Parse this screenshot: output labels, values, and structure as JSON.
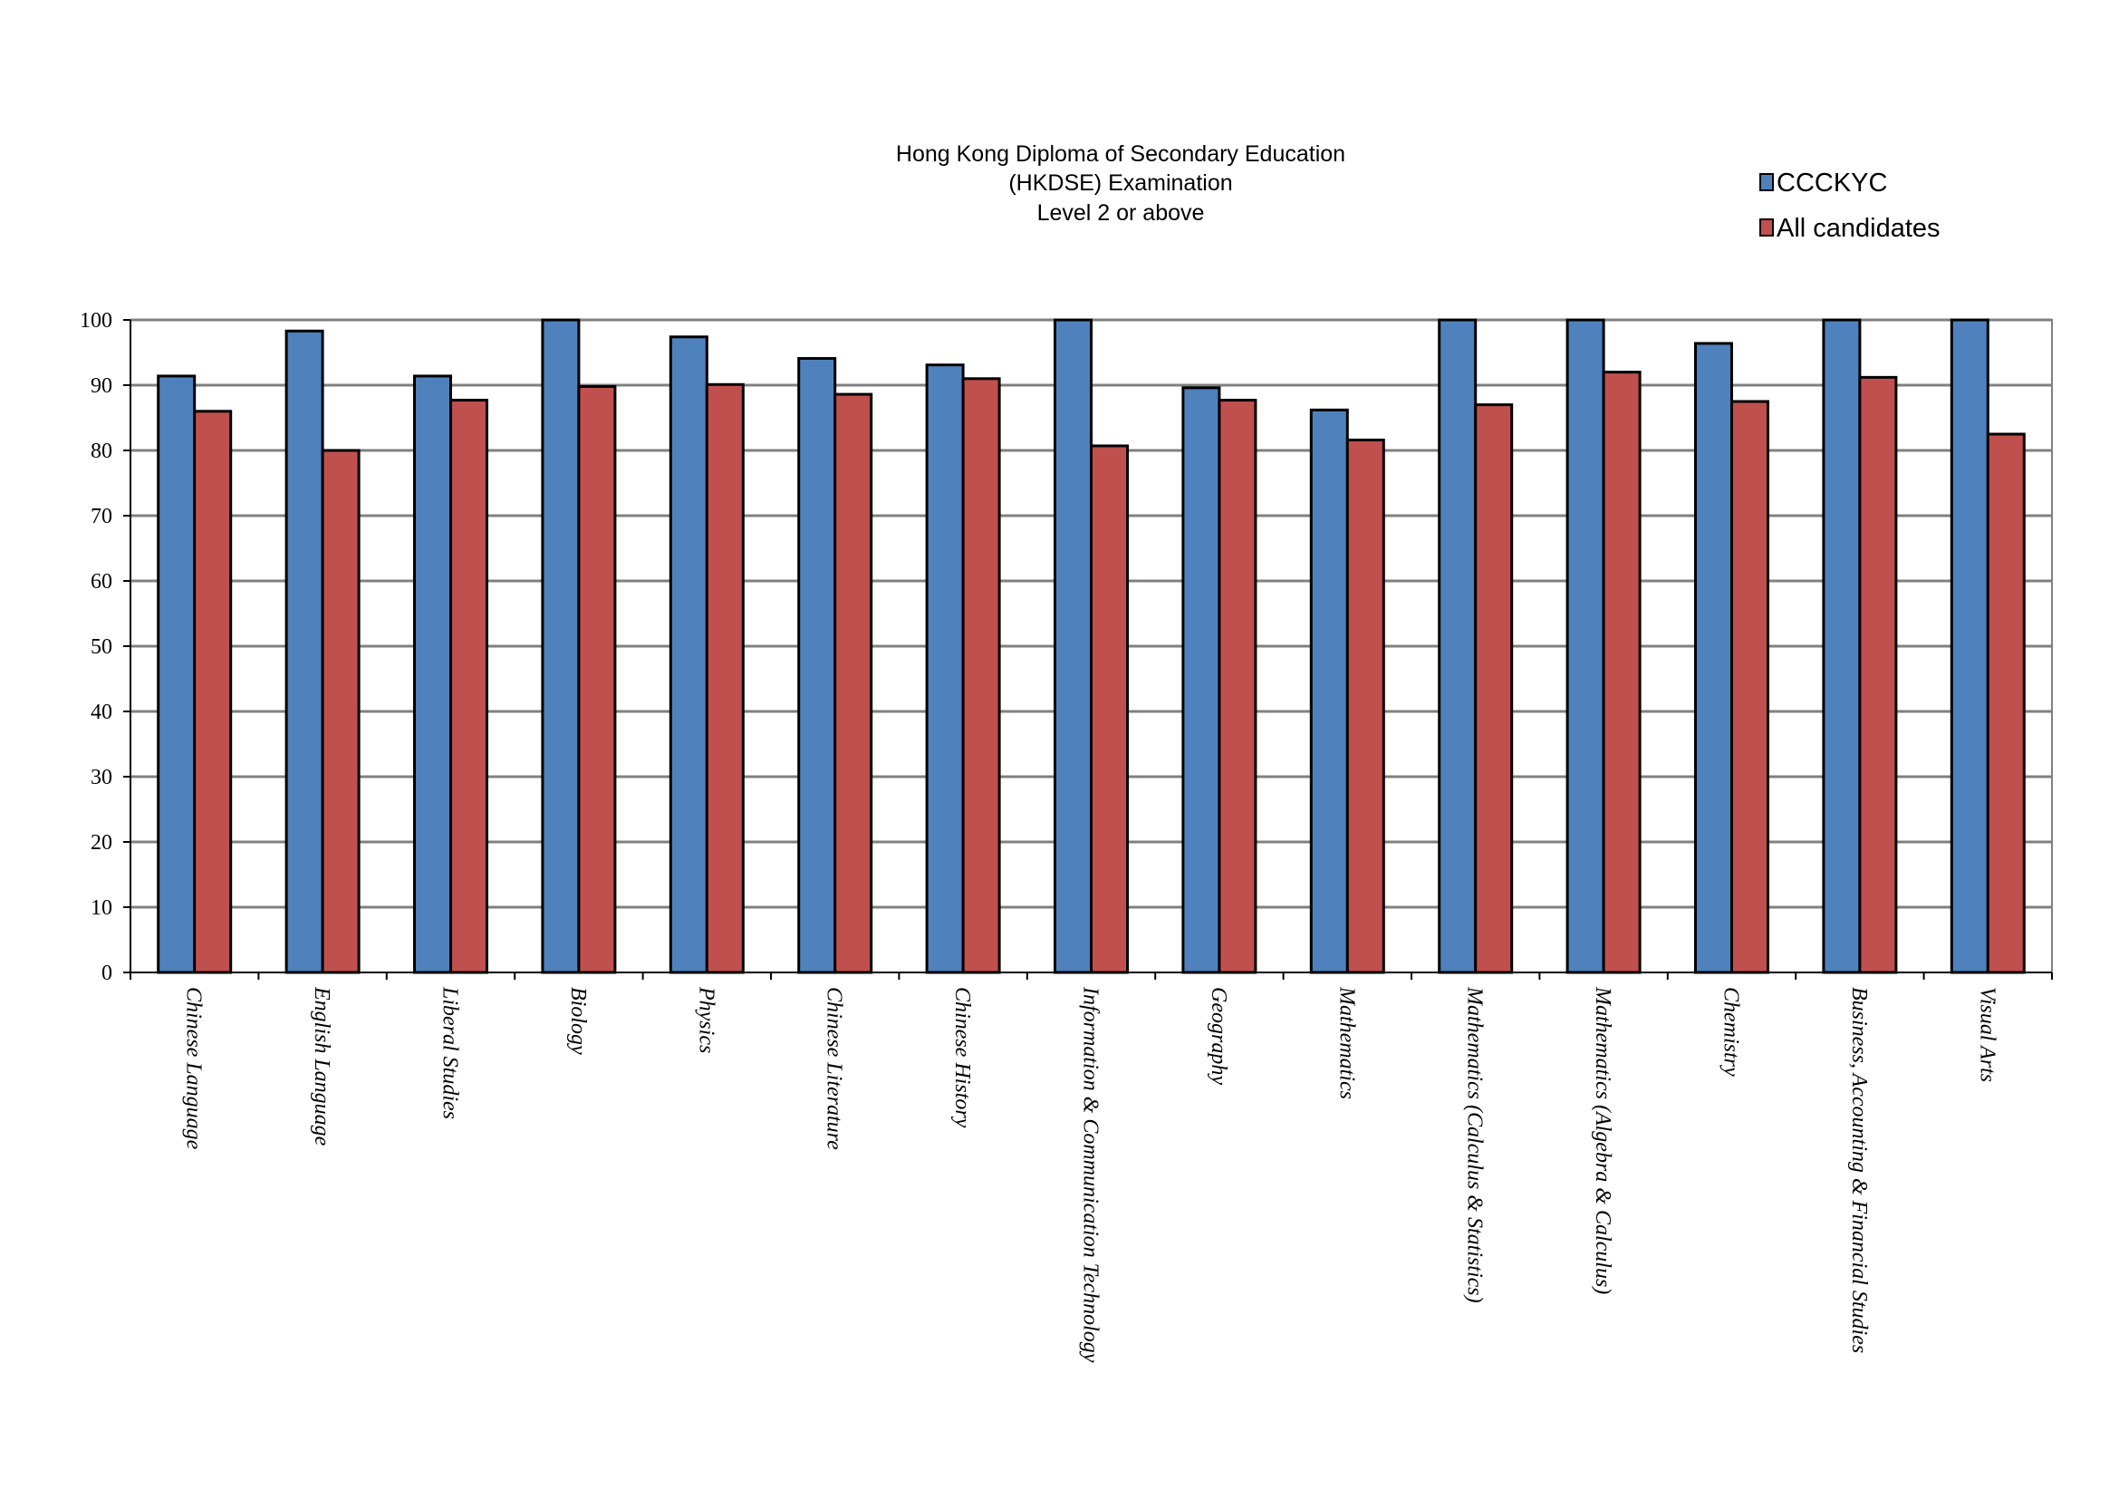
{
  "chart_data": {
    "type": "bar",
    "title": [
      "Hong Kong Diploma of Secondary Education",
      "(HKDSE) Examination",
      "Level 2 or above"
    ],
    "categories": [
      "Chinese Language",
      "English Language",
      "Liberal Studies",
      "Biology",
      "Physics",
      "Chinese Literature",
      "Chinese History",
      "Information & Communication Technology",
      "Geography",
      "Mathematics",
      "Mathematics (Calculus & Statistics)",
      "Mathematics (Algebra & Calculus)",
      "Chemistry",
      "Business, Accounting & Financial Studies",
      "Visual Arts"
    ],
    "series": [
      {
        "name": "CCCKYC",
        "color": "#4f81bd",
        "values": [
          91.4,
          98.3,
          91.4,
          100,
          97.4,
          94.1,
          93.1,
          100,
          89.6,
          86.2,
          100,
          100,
          96.4,
          100,
          100
        ]
      },
      {
        "name": "All candidates",
        "color": "#c0504d",
        "values": [
          86.0,
          80.0,
          87.7,
          89.8,
          90.1,
          88.6,
          91.0,
          80.7,
          87.7,
          81.6,
          87.0,
          92.0,
          87.5,
          91.2,
          82.5
        ]
      }
    ],
    "ylim": [
      0,
      100
    ],
    "yticks": [
      "0",
      "10",
      "20",
      "30",
      "40",
      "50",
      "60",
      "70",
      "80",
      "90",
      "100"
    ],
    "xlabel": "",
    "ylabel": "",
    "grid": true,
    "legend_position": "top-right"
  }
}
